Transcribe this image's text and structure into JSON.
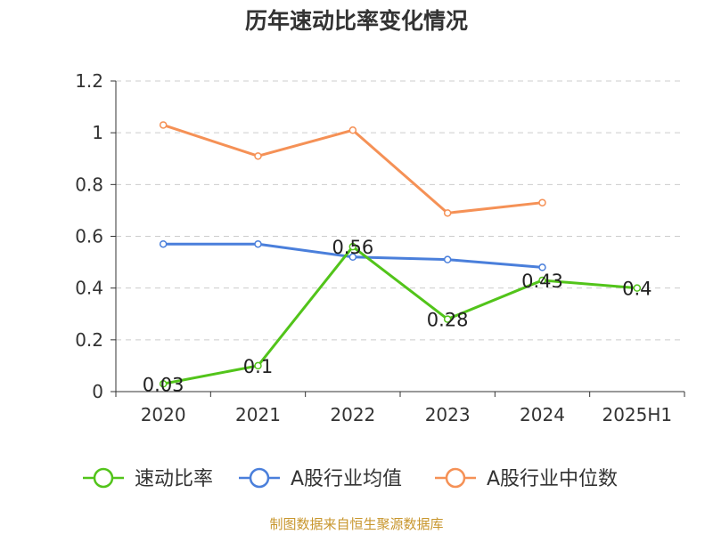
{
  "source_text": "制图数据来自恒生聚源数据库",
  "chart_data": {
    "type": "line",
    "title": "历年速动比率变化情况",
    "categories": [
      "2020",
      "2021",
      "2022",
      "2023",
      "2024",
      "2025H1"
    ],
    "ylim": [
      0,
      1.2
    ],
    "yticks": [
      0,
      0.2,
      0.4,
      0.6,
      0.8,
      1,
      1.2
    ],
    "ytick_labels": [
      "0",
      "0.2",
      "0.4",
      "0.6",
      "0.8",
      "1",
      "1.2"
    ],
    "grid": true,
    "legend_position": "bottom",
    "series": [
      {
        "name": "速动比率",
        "color": "#52c41a",
        "values": [
          0.03,
          0.1,
          0.56,
          0.28,
          0.43,
          0.4
        ],
        "labels": [
          "0.03",
          "0.1",
          "0.56",
          "0.28",
          "0.43",
          "0.4"
        ]
      },
      {
        "name": "A股行业均值",
        "color": "#4a7fdb",
        "values": [
          0.57,
          0.57,
          0.52,
          0.51,
          0.48,
          null
        ]
      },
      {
        "name": "A股行业中位数",
        "color": "#f59156",
        "values": [
          1.03,
          0.91,
          1.01,
          0.69,
          0.73,
          null
        ]
      }
    ]
  }
}
